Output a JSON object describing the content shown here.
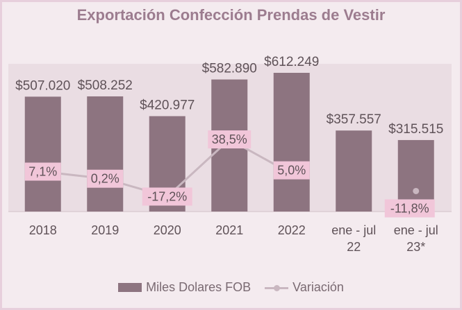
{
  "chart_data": {
    "type": "bar",
    "title": "Exportación Confección Prendas de Vestir",
    "categories": [
      "2018",
      "2019",
      "2020",
      "2021",
      "2022",
      "ene - jul 22",
      "ene - jul 23*"
    ],
    "series": [
      {
        "name": "Miles Dolares FOB",
        "type": "bar",
        "values": [
          507020,
          508252,
          420977,
          582890,
          612249,
          357557,
          315515
        ],
        "labels": [
          "$507.020",
          "$508.252",
          "$420.977",
          "$582.890",
          "$612.249",
          "$357.557",
          "$315.515"
        ]
      },
      {
        "name": "Variación",
        "type": "line",
        "values": [
          7.1,
          0.2,
          -17.2,
          38.5,
          5.0,
          null,
          -11.8
        ],
        "labels": [
          "7,1%",
          "0,2%",
          "-17,2%",
          "38,5%",
          "5,0%",
          null,
          "-11,8%"
        ]
      }
    ],
    "legend": [
      "Miles Dolares FOB",
      "Variación"
    ],
    "legend_position": "bottom",
    "colors": {
      "bar": "#8d7480",
      "line": "#c9b7c0",
      "label_bg": "#f1c6d9",
      "text": "#5f5258",
      "title": "#9c7c8f"
    }
  }
}
